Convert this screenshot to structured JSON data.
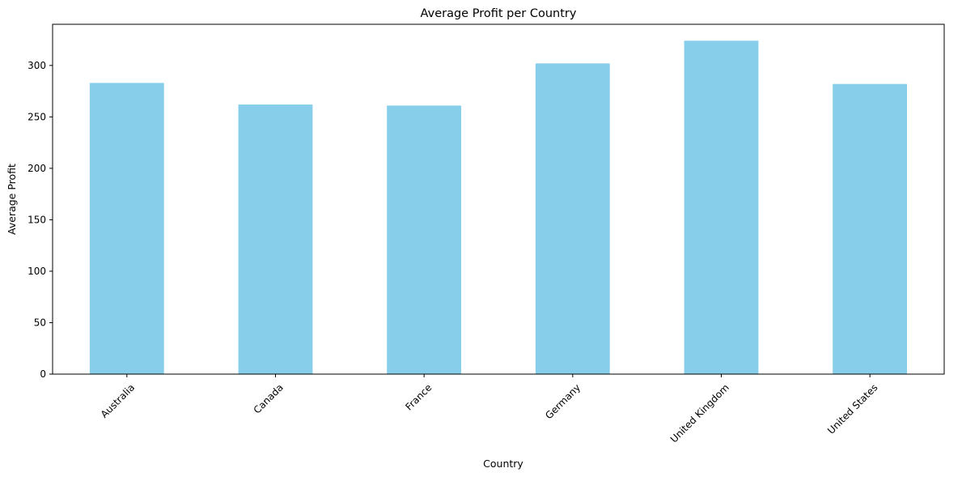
{
  "chart_data": {
    "type": "bar",
    "title": "Average Profit per Country",
    "xlabel": "Country",
    "ylabel": "Average Profit",
    "categories": [
      "Australia",
      "Canada",
      "France",
      "Germany",
      "United Kingdom",
      "United States"
    ],
    "values": [
      283,
      262,
      261,
      302,
      324,
      282
    ],
    "ylim": [
      0,
      340
    ],
    "yticks": [
      0,
      50,
      100,
      150,
      200,
      250,
      300
    ],
    "xtick_rotation_deg": 45,
    "grid": false,
    "legend": "none",
    "colors": {
      "bar": "#87ceeb",
      "axes": "#000000",
      "background": "#ffffff"
    }
  }
}
